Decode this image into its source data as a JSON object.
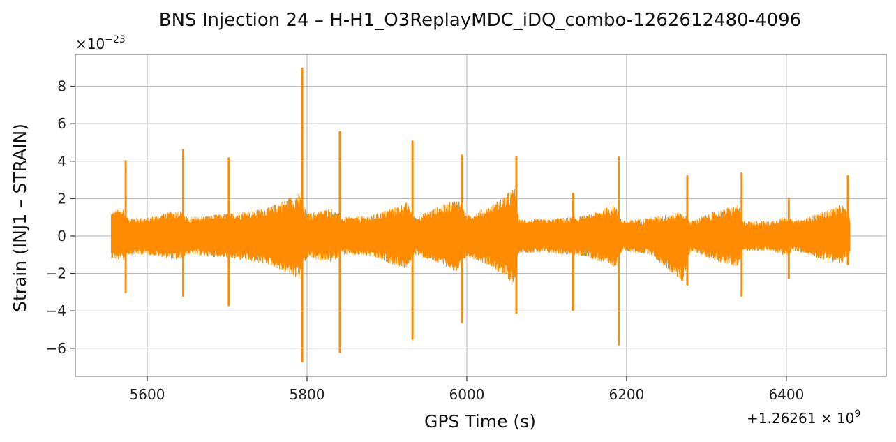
{
  "chart_data": {
    "type": "line",
    "title": "BNS Injection 24 – H-H1_O3ReplayMDC_iDQ_combo-1262612480-4096",
    "xlabel": "GPS Time (s)",
    "ylabel": "Strain (INJ1 – STRAIN)",
    "x_offset_label_base": "+1.26261",
    "x_offset_label_exp": "9",
    "y_multiplier_base": "×10",
    "y_multiplier_exp": "−23",
    "xlim": [
      5510,
      6525
    ],
    "ylim": [
      -7.5,
      9.7
    ],
    "xticks": [
      5600,
      5800,
      6000,
      6200,
      6400
    ],
    "xtick_labels": [
      "5600",
      "5800",
      "6000",
      "6200",
      "6400"
    ],
    "yticks": [
      -6,
      -4,
      -2,
      0,
      2,
      4,
      6,
      8
    ],
    "ytick_labels": [
      "−6",
      "−4",
      "−2",
      "0",
      "2",
      "4",
      "6",
      "8"
    ],
    "grid": true,
    "line_color": "#ff8c00",
    "x_range": [
      5555,
      6480
    ],
    "envelope_x": [
      5555,
      5570,
      5575,
      5600,
      5640,
      5650,
      5700,
      5750,
      5790,
      5800,
      5830,
      5845,
      5880,
      5925,
      5935,
      5960,
      5990,
      6000,
      6030,
      6060,
      6065,
      6100,
      6150,
      6185,
      6195,
      6230,
      6270,
      6280,
      6310,
      6340,
      6345,
      6380,
      6400,
      6410,
      6440,
      6470,
      6480
    ],
    "envelope_upper": [
      1.3,
      1.5,
      1.0,
      1.0,
      1.4,
      1.0,
      1.2,
      1.5,
      2.3,
      1.2,
      1.5,
      1.0,
      1.1,
      1.8,
      1.0,
      1.5,
      2.0,
      1.1,
      1.6,
      2.6,
      0.9,
      0.9,
      1.1,
      1.7,
      0.8,
      1.0,
      1.3,
      0.8,
      1.3,
      1.7,
      0.8,
      0.8,
      1.1,
      0.8,
      1.2,
      1.7,
      1.0
    ],
    "envelope_lower": [
      -1.2,
      -1.4,
      -1.0,
      -1.0,
      -1.3,
      -1.0,
      -1.2,
      -1.5,
      -2.3,
      -1.2,
      -1.4,
      -1.0,
      -1.1,
      -1.8,
      -1.0,
      -1.4,
      -2.0,
      -1.1,
      -1.6,
      -2.6,
      -0.9,
      -0.9,
      -1.1,
      -1.7,
      -0.8,
      -1.0,
      -2.5,
      -0.8,
      -1.3,
      -1.7,
      -0.8,
      -0.8,
      -1.1,
      -0.8,
      -1.2,
      -1.5,
      -1.0
    ],
    "spikes": [
      {
        "x": 5573,
        "max": 4.0,
        "min": -3.0
      },
      {
        "x": 5645,
        "max": 4.6,
        "min": -3.2
      },
      {
        "x": 5702,
        "max": 4.15,
        "min": -3.7
      },
      {
        "x": 5794,
        "max": 8.95,
        "min": -6.7
      },
      {
        "x": 5841,
        "max": 5.55,
        "min": -6.2
      },
      {
        "x": 5932,
        "max": 5.05,
        "min": -5.5
      },
      {
        "x": 5994,
        "max": 4.3,
        "min": -4.6
      },
      {
        "x": 6062,
        "max": 4.2,
        "min": -4.1
      },
      {
        "x": 6133,
        "max": 2.25,
        "min": -3.95
      },
      {
        "x": 6190,
        "max": 4.2,
        "min": -5.8
      },
      {
        "x": 6276,
        "max": 3.2,
        "min": -2.6
      },
      {
        "x": 6344,
        "max": 3.35,
        "min": -3.2
      },
      {
        "x": 6403,
        "max": 2.0,
        "min": -2.25
      },
      {
        "x": 6477,
        "max": 3.2,
        "min": -1.5
      }
    ]
  }
}
